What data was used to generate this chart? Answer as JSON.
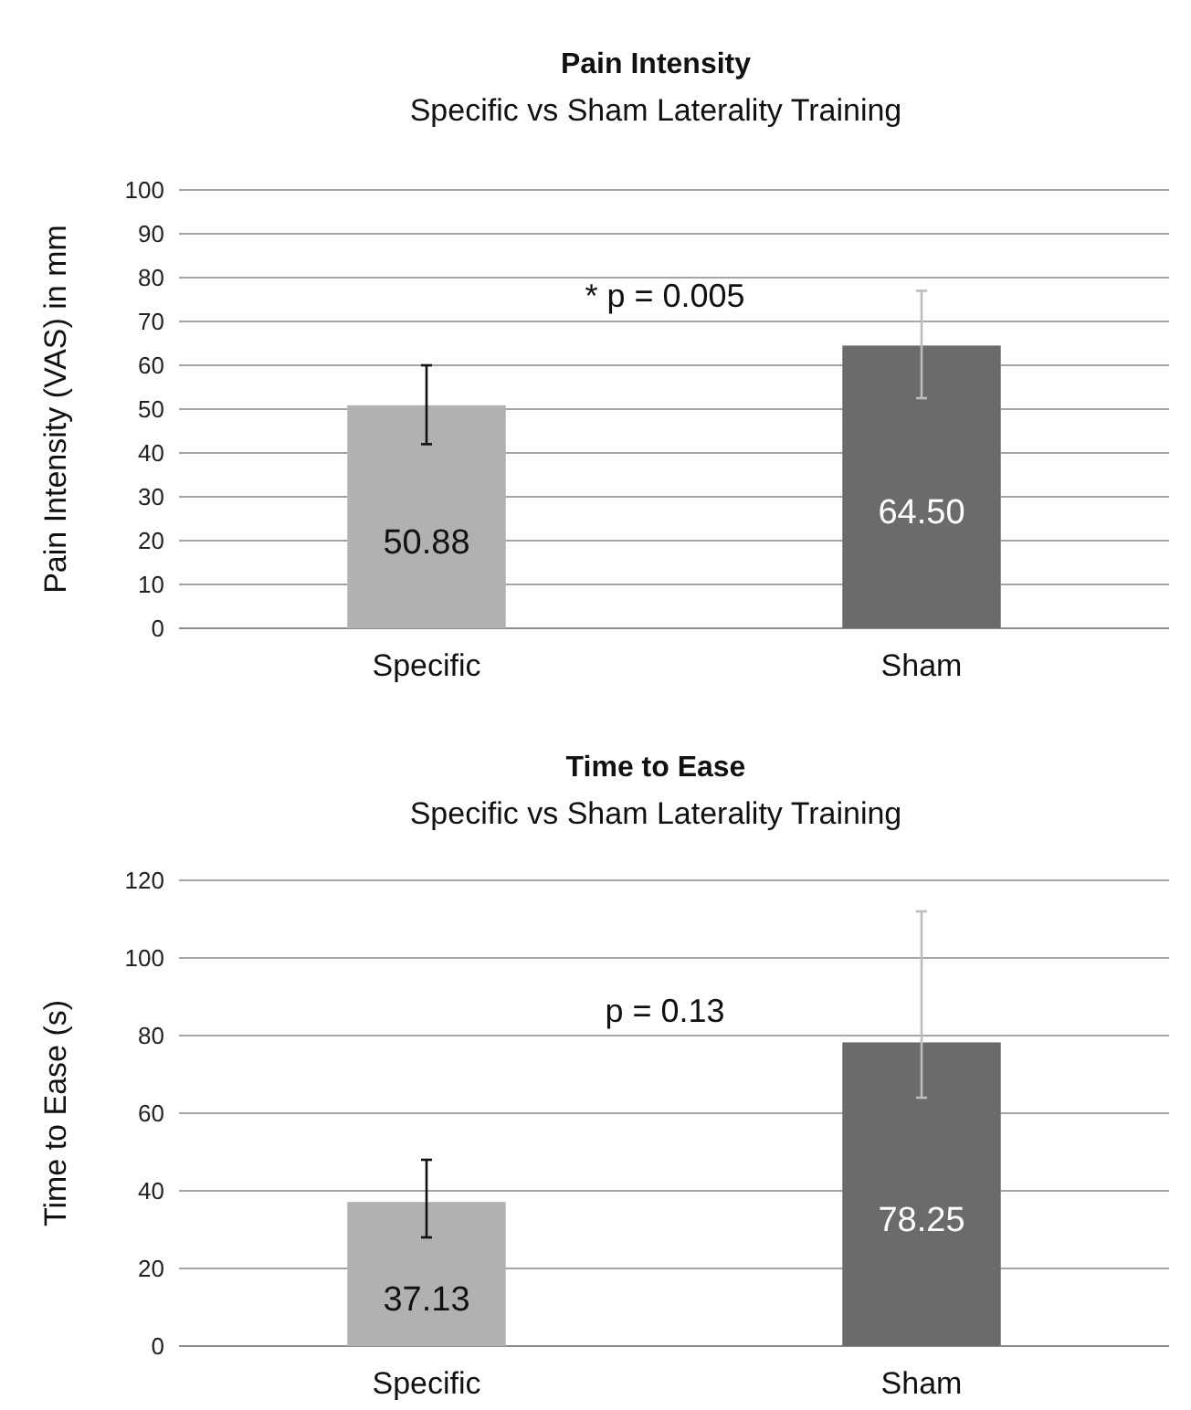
{
  "chart_data": [
    {
      "type": "bar",
      "title": "Pain Intensity",
      "subtitle": "Specific vs Sham Laterality Training",
      "ylabel": "Pain Intensity (VAS) in mm",
      "categories": [
        "Specific",
        "Sham"
      ],
      "values": [
        50.88,
        64.5
      ],
      "colors": [
        "#b1b1b1",
        "#6b6b6e"
      ],
      "value_labels": [
        "50.88",
        "64.50"
      ],
      "errors": [
        [
          42,
          60
        ],
        [
          52.5,
          77
        ]
      ],
      "ylim": [
        0,
        100
      ],
      "yticks": [
        0,
        10,
        20,
        30,
        40,
        50,
        60,
        70,
        80,
        90,
        100
      ],
      "grid": "y",
      "annotations": [
        "* p = 0.005"
      ]
    },
    {
      "type": "bar",
      "title": "Time to Ease",
      "subtitle": "Specific vs Sham Laterality Training",
      "ylabel": "Time to Ease (s)",
      "categories": [
        "Specific",
        "Sham"
      ],
      "values": [
        37.13,
        78.25
      ],
      "colors": [
        "#b1b1b1",
        "#6b6b6e"
      ],
      "value_labels": [
        "37.13",
        "78.25"
      ],
      "errors": [
        [
          28,
          48
        ],
        [
          64,
          112
        ]
      ],
      "ylim": [
        0,
        120
      ],
      "yticks": [
        0,
        20,
        40,
        60,
        80,
        100,
        120
      ],
      "grid": "y",
      "annotations": [
        "p = 0.13"
      ]
    }
  ]
}
